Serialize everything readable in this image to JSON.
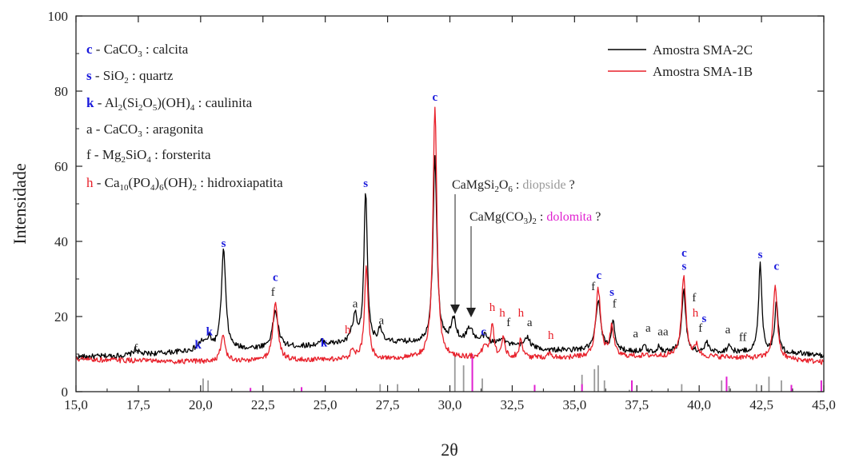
{
  "chart_data": {
    "type": "line",
    "xlabel": "2θ",
    "ylabel": "Intensidade",
    "xlim": [
      15,
      45
    ],
    "ylim": [
      0,
      100
    ],
    "x_ticks": [
      "15,0",
      "17,5",
      "20,0",
      "22,5",
      "25,0",
      "27,5",
      "30,0",
      "32,5",
      "35,0",
      "37,5",
      "40,0",
      "42,5",
      "45,0"
    ],
    "y_ticks": [
      "0",
      "20",
      "40",
      "60",
      "80",
      "100"
    ],
    "legend_position": "top-right",
    "series": [
      {
        "name": "Amostra SMA-2C",
        "color": "#000000",
        "baseline": [
          [
            15,
            9.2
          ],
          [
            17,
            9.6
          ],
          [
            19,
            10.5
          ],
          [
            20,
            11
          ],
          [
            22,
            11.4
          ],
          [
            24,
            12
          ],
          [
            26,
            13
          ],
          [
            28,
            13
          ],
          [
            30,
            13
          ],
          [
            32,
            12.5
          ],
          [
            34,
            11
          ],
          [
            36,
            11
          ],
          [
            38,
            10.5
          ],
          [
            40,
            10.5
          ],
          [
            42,
            10.5
          ],
          [
            44,
            10.2
          ],
          [
            45,
            9.5
          ]
        ],
        "peaks": [
          [
            17.4,
            1.5,
            0.15
          ],
          [
            20.05,
            2,
            0.2
          ],
          [
            20.35,
            2.5,
            0.15
          ],
          [
            20.92,
            26.5,
            0.13
          ],
          [
            23.0,
            9.7,
            0.17
          ],
          [
            24.9,
            1,
            0.15
          ],
          [
            26.05,
            2,
            0.1
          ],
          [
            26.2,
            6.5,
            0.1
          ],
          [
            26.62,
            40.5,
            0.1
          ],
          [
            27.2,
            4,
            0.1
          ],
          [
            29.4,
            49,
            0.12
          ],
          [
            30.15,
            6,
            0.15
          ],
          [
            30.8,
            4,
            0.2
          ],
          [
            31.4,
            2,
            0.2
          ],
          [
            32.1,
            2,
            0.15
          ],
          [
            33.1,
            3,
            0.15
          ],
          [
            35.95,
            13,
            0.15
          ],
          [
            36.55,
            8,
            0.1
          ],
          [
            37.8,
            1.5,
            0.1
          ],
          [
            38.4,
            1.5,
            0.1
          ],
          [
            39.38,
            16.5,
            0.12
          ],
          [
            40.3,
            2.5,
            0.1
          ],
          [
            41.2,
            2,
            0.1
          ],
          [
            42.45,
            23.5,
            0.1
          ],
          [
            43.1,
            14,
            0.1
          ]
        ]
      },
      {
        "name": "Amostra SMA-1B",
        "color": "#e8202a",
        "baseline": [
          [
            15,
            8.6
          ],
          [
            17,
            8.3
          ],
          [
            19,
            8
          ],
          [
            20,
            8
          ],
          [
            22,
            8.2
          ],
          [
            24,
            8.3
          ],
          [
            26,
            8.6
          ],
          [
            28,
            8.7
          ],
          [
            30,
            9
          ],
          [
            32,
            9
          ],
          [
            34,
            9
          ],
          [
            36,
            9
          ],
          [
            38,
            9.5
          ],
          [
            40,
            9.3
          ],
          [
            42,
            9
          ],
          [
            44,
            8.4
          ],
          [
            45,
            7.8
          ]
        ],
        "peaks": [
          [
            20.9,
            7,
            0.13
          ],
          [
            23.0,
            15.5,
            0.15
          ],
          [
            26.1,
            3,
            0.1
          ],
          [
            26.65,
            25,
            0.11
          ],
          [
            29.4,
            67,
            0.12
          ],
          [
            31.4,
            3,
            0.15
          ],
          [
            31.7,
            9,
            0.1
          ],
          [
            32.15,
            5,
            0.1
          ],
          [
            32.85,
            5,
            0.1
          ],
          [
            34.0,
            1,
            0.15
          ],
          [
            35.95,
            18,
            0.15
          ],
          [
            36.5,
            8,
            0.12
          ],
          [
            39.38,
            21.5,
            0.13
          ],
          [
            39.9,
            3,
            0.1
          ],
          [
            43.05,
            20,
            0.12
          ]
        ]
      }
    ],
    "reference_lines": {
      "calcita": {
        "color": "#999999",
        "peaks": [
          [
            20.1,
            3.5
          ],
          [
            20.3,
            3
          ],
          [
            27.2,
            2
          ],
          [
            27.9,
            2
          ],
          [
            30.2,
            10
          ],
          [
            30.55,
            7
          ],
          [
            31.3,
            3.5
          ],
          [
            35.3,
            4.5
          ],
          [
            35.8,
            6
          ],
          [
            35.95,
            7
          ],
          [
            36.2,
            3
          ],
          [
            37.2,
            0.5
          ],
          [
            38.1,
            0.5
          ],
          [
            39.3,
            2
          ],
          [
            40.9,
            3
          ],
          [
            41.2,
            1.5
          ],
          [
            42.3,
            2
          ],
          [
            42.8,
            4
          ],
          [
            43.3,
            3
          ]
        ]
      },
      "dolomita": {
        "color": "#e020d0",
        "peaks": [
          [
            22.0,
            1
          ],
          [
            24.05,
            1.2
          ],
          [
            30.9,
            10
          ],
          [
            33.4,
            1.8
          ],
          [
            35.3,
            2
          ],
          [
            37.3,
            3
          ],
          [
            41.1,
            4
          ],
          [
            43.7,
            1.8
          ],
          [
            44.9,
            3
          ]
        ]
      }
    },
    "legend_mineral": [
      {
        "letter": "c",
        "formula": "CaCO",
        "sub": "3",
        "rest": "  : calcita"
      },
      {
        "letter": "s",
        "formula": "SiO",
        "sub": "2",
        "rest": "  : quartz"
      },
      {
        "letter": "k",
        "formula": "Al(Si2O5)(OH)4",
        "rest": "  : caulinita"
      },
      {
        "letter": "a",
        "formula": "CaCO",
        "sub": "3",
        "rest": "  : aragonita"
      },
      {
        "letter": "f",
        "formula": "Mg2SiO4",
        "rest": "  : forsterita"
      },
      {
        "letter": "h",
        "formula": "Ca10(PO4)6(OH)2",
        "rest": "  : hidroxiapatita"
      }
    ],
    "annotations": {
      "diopside": {
        "formula": "CaMgSi",
        "suffix": "O",
        "rest": " : ",
        "name": "diopside",
        "q": " ?"
      },
      "dolomita": {
        "formula": "CaMg(CO",
        "rest": " : ",
        "name": "dolomita",
        "q": " ?"
      }
    },
    "peak_labels": [
      {
        "t": "f",
        "x": 17.4,
        "y": 10.5,
        "c": "k"
      },
      {
        "t": "k",
        "x": 19.9,
        "y": 11.5,
        "c": "b"
      },
      {
        "t": "k",
        "x": 20.35,
        "y": 15,
        "c": "b"
      },
      {
        "t": "s",
        "x": 20.92,
        "y": 38.5,
        "c": "b"
      },
      {
        "t": "f",
        "x": 22.9,
        "y": 25.5,
        "c": "k"
      },
      {
        "t": "c",
        "x": 23.0,
        "y": 29.5,
        "c": "b"
      },
      {
        "t": "k",
        "x": 24.95,
        "y": 12,
        "c": "b"
      },
      {
        "t": "h",
        "x": 25.9,
        "y": 15.5,
        "c": "r"
      },
      {
        "t": "a",
        "x": 26.2,
        "y": 22.5,
        "c": "k"
      },
      {
        "t": "s",
        "x": 26.62,
        "y": 54.5,
        "c": "b"
      },
      {
        "t": "a",
        "x": 27.25,
        "y": 18,
        "c": "k"
      },
      {
        "t": "c",
        "x": 29.4,
        "y": 77.5,
        "c": "b"
      },
      {
        "t": "c",
        "x": 31.35,
        "y": 15,
        "c": "b"
      },
      {
        "t": "h",
        "x": 31.7,
        "y": 21.5,
        "c": "r"
      },
      {
        "t": "h",
        "x": 32.1,
        "y": 20,
        "c": "r"
      },
      {
        "t": "f",
        "x": 32.35,
        "y": 17.5,
        "c": "k"
      },
      {
        "t": "h",
        "x": 32.85,
        "y": 20,
        "c": "r"
      },
      {
        "t": "a",
        "x": 33.2,
        "y": 17.5,
        "c": "k"
      },
      {
        "t": "h",
        "x": 34.05,
        "y": 14,
        "c": "r"
      },
      {
        "t": "f",
        "x": 35.75,
        "y": 27,
        "c": "k"
      },
      {
        "t": "c",
        "x": 35.98,
        "y": 30,
        "c": "b"
      },
      {
        "t": "s",
        "x": 36.5,
        "y": 25.5,
        "c": "b"
      },
      {
        "t": "f",
        "x": 36.6,
        "y": 22.5,
        "c": "k"
      },
      {
        "t": "a",
        "x": 37.45,
        "y": 14.5,
        "c": "k"
      },
      {
        "t": "a",
        "x": 37.95,
        "y": 16,
        "c": "k"
      },
      {
        "t": "aa",
        "x": 38.55,
        "y": 15,
        "c": "k"
      },
      {
        "t": "c",
        "x": 39.4,
        "y": 36,
        "c": "b"
      },
      {
        "t": "s",
        "x": 39.4,
        "y": 32.5,
        "c": "b"
      },
      {
        "t": "f",
        "x": 39.8,
        "y": 24,
        "c": "k"
      },
      {
        "t": "h",
        "x": 39.85,
        "y": 20,
        "c": "r"
      },
      {
        "t": "f",
        "x": 40.05,
        "y": 16,
        "c": "k"
      },
      {
        "t": "s",
        "x": 40.2,
        "y": 18.5,
        "c": "b"
      },
      {
        "t": "a",
        "x": 41.15,
        "y": 15.5,
        "c": "k"
      },
      {
        "t": "ff",
        "x": 41.75,
        "y": 13.5,
        "c": "k"
      },
      {
        "t": "s",
        "x": 42.45,
        "y": 35.5,
        "c": "b"
      },
      {
        "t": "c",
        "x": 43.1,
        "y": 32.5,
        "c": "b"
      }
    ]
  }
}
